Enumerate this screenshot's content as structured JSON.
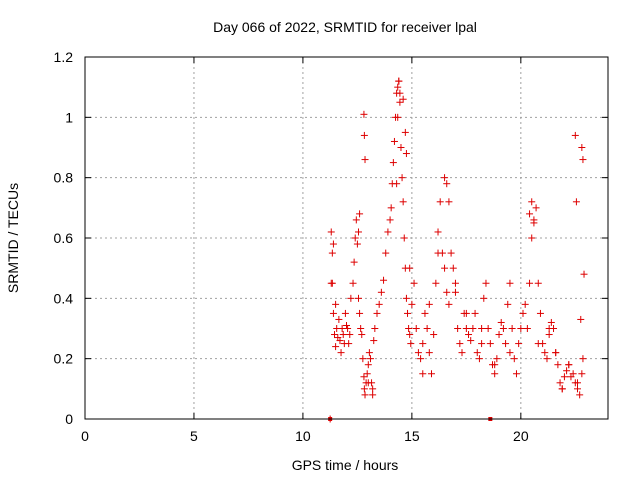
{
  "chart_data": {
    "type": "scatter",
    "title": "Day 066 of 2022, SRMTID for receiver lpal",
    "xlabel": "GPS time / hours",
    "ylabel": "SRMTID / TECUs",
    "xlim": [
      0,
      24
    ],
    "ylim": [
      0,
      1.2
    ],
    "x_ticks": [
      0,
      5,
      10,
      15,
      20
    ],
    "x_tick_labels": [
      "0",
      "5",
      "10",
      "15",
      "20"
    ],
    "y_ticks": [
      0,
      0.2,
      0.4,
      0.6,
      0.8,
      1.0,
      1.2
    ],
    "y_tick_labels": [
      "0",
      "0.2",
      "0.4",
      "0.6",
      "0.8",
      "1",
      "1.2"
    ],
    "grid": true,
    "marker": "plus",
    "color": "#dd0000",
    "series": [
      {
        "name": "SRMTID",
        "x": [
          11.25,
          11.3,
          11.35,
          11.4,
          11.45,
          11.5,
          11.55,
          11.6,
          11.65,
          11.7,
          11.75,
          11.8,
          11.85,
          11.9,
          11.95,
          12.0,
          12.05,
          12.1,
          12.15,
          12.2,
          12.3,
          12.35,
          12.4,
          12.45,
          12.5,
          12.55,
          12.6,
          12.65,
          12.7,
          12.75,
          12.8,
          12.82,
          12.85,
          12.9,
          12.95,
          13.0,
          13.05,
          13.1,
          13.15,
          13.2,
          13.25,
          13.3,
          13.4,
          13.5,
          13.6,
          13.7,
          13.8,
          13.9,
          14.0,
          14.05,
          14.1,
          14.15,
          14.2,
          14.25,
          14.3,
          14.35,
          14.4,
          14.45,
          14.5,
          14.55,
          14.6,
          14.65,
          14.7,
          14.75,
          14.8,
          14.85,
          14.9,
          14.95,
          15.0,
          15.1,
          15.2,
          15.3,
          15.4,
          15.5,
          15.6,
          15.7,
          15.8,
          15.9,
          16.0,
          16.1,
          16.2,
          16.3,
          16.4,
          16.5,
          16.6,
          16.7,
          16.8,
          16.9,
          17.0,
          17.1,
          17.2,
          17.3,
          17.4,
          17.5,
          17.6,
          17.7,
          17.8,
          17.9,
          18.0,
          18.1,
          18.2,
          18.3,
          18.4,
          18.5,
          18.6,
          18.7,
          18.8,
          18.9,
          19.0,
          19.1,
          19.2,
          19.3,
          19.4,
          19.5,
          19.6,
          19.7,
          19.8,
          19.9,
          20.0,
          20.1,
          20.2,
          20.3,
          20.4,
          20.5,
          20.6,
          20.7,
          20.8,
          20.9,
          21.0,
          21.1,
          21.2,
          21.3,
          21.4,
          21.5,
          21.6,
          21.7,
          21.8,
          21.9,
          22.0,
          22.1,
          22.2,
          22.3,
          22.4,
          22.5,
          22.6,
          22.7,
          22.8,
          22.85,
          11.35,
          11.4,
          11.5,
          12.55,
          12.6,
          12.8,
          12.82,
          12.85,
          14.3,
          14.35,
          14.4,
          14.45,
          14.6,
          14.7,
          14.75,
          16.5,
          16.6,
          16.7,
          20.4,
          20.5,
          20.6,
          22.5,
          22.55,
          22.75,
          22.8,
          22.85,
          22.9,
          11.3,
          13.0,
          13.2,
          14.9,
          15.5,
          15.8,
          16.2,
          17.0,
          17.5,
          18.2,
          18.8,
          19.5,
          20.8,
          21.3,
          21.6,
          21.9,
          22.2,
          22.6
        ],
        "y": [
          0.0,
          0.62,
          0.45,
          0.35,
          0.28,
          0.24,
          0.3,
          0.27,
          0.33,
          0.26,
          0.22,
          0.3,
          0.28,
          0.25,
          0.35,
          0.31,
          0.3,
          0.25,
          0.28,
          0.4,
          0.45,
          0.52,
          0.6,
          0.66,
          0.58,
          0.4,
          0.35,
          0.3,
          0.28,
          0.2,
          0.14,
          0.1,
          0.08,
          0.12,
          0.15,
          0.18,
          0.22,
          0.2,
          0.12,
          0.1,
          0.26,
          0.3,
          0.35,
          0.38,
          0.42,
          0.46,
          0.55,
          0.62,
          0.66,
          0.7,
          0.78,
          0.85,
          0.92,
          1.0,
          1.08,
          1.1,
          1.12,
          1.05,
          0.9,
          0.8,
          0.72,
          0.6,
          0.5,
          0.4,
          0.35,
          0.3,
          0.28,
          0.25,
          0.38,
          0.45,
          0.3,
          0.22,
          0.2,
          0.25,
          0.35,
          0.3,
          0.22,
          0.15,
          0.28,
          0.45,
          0.62,
          0.72,
          0.55,
          0.5,
          0.42,
          0.38,
          0.55,
          0.5,
          0.45,
          0.3,
          0.25,
          0.22,
          0.35,
          0.3,
          0.28,
          0.26,
          0.3,
          0.35,
          0.22,
          0.2,
          0.25,
          0.4,
          0.45,
          0.3,
          0.25,
          0.18,
          0.15,
          0.2,
          0.28,
          0.32,
          0.3,
          0.25,
          0.38,
          0.45,
          0.3,
          0.2,
          0.15,
          0.25,
          0.3,
          0.35,
          0.38,
          0.3,
          0.45,
          0.6,
          0.65,
          0.7,
          0.45,
          0.35,
          0.25,
          0.22,
          0.2,
          0.28,
          0.32,
          0.3,
          0.22,
          0.18,
          0.12,
          0.1,
          0.14,
          0.16,
          0.18,
          0.14,
          0.15,
          0.12,
          0.1,
          0.08,
          0.15,
          0.2,
          0.55,
          0.58,
          0.38,
          0.62,
          0.68,
          1.01,
          0.94,
          0.86,
          0.78,
          1.0,
          1.12,
          1.08,
          1.06,
          0.95,
          0.88,
          0.8,
          0.78,
          0.72,
          0.68,
          0.72,
          0.66,
          0.94,
          0.72,
          0.33,
          0.9,
          0.86,
          0.48,
          0.45,
          0.12,
          0.08,
          0.5,
          0.15,
          0.38,
          0.55,
          0.42,
          0.35,
          0.3,
          0.18,
          0.22,
          0.25,
          0.3,
          0.22,
          0.1,
          0.18,
          0.12
        ]
      }
    ],
    "flat_markers": [
      {
        "x": 11.25,
        "y": 0.0
      },
      {
        "x": 18.6,
        "y": 0.0
      }
    ]
  }
}
